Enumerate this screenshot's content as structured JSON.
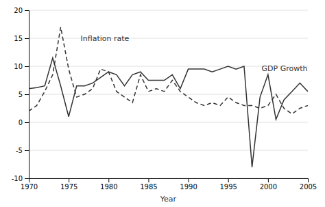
{
  "chart_data": {
    "type": "line",
    "x": [
      1970,
      1971,
      1972,
      1973,
      1974,
      1975,
      1976,
      1977,
      1978,
      1979,
      1980,
      1981,
      1982,
      1983,
      1984,
      1985,
      1986,
      1987,
      1988,
      1989,
      1990,
      1991,
      1992,
      1993,
      1994,
      1995,
      1996,
      1997,
      1998,
      1999,
      2000,
      2001,
      2002,
      2003,
      2004,
      2005
    ],
    "series": [
      {
        "values": [
          6.0,
          6.2,
          6.5,
          11.5,
          6.5,
          1.0,
          6.5,
          6.5,
          7.0,
          8.0,
          9.0,
          8.5,
          6.5,
          8.5,
          9.0,
          7.5,
          7.5,
          7.5,
          8.5,
          6.0,
          9.5,
          9.5,
          9.5,
          9.0,
          9.5,
          10.0,
          9.5,
          10.0,
          -8.0,
          4.5,
          8.5,
          0.5,
          4.0,
          5.5,
          7.0,
          5.5
        ],
        "line_style": "solid",
        "color": "#333333"
      },
      {
        "values": [
          2.0,
          3.0,
          5.5,
          8.5,
          17.0,
          9.5,
          4.5,
          5.0,
          6.0,
          9.5,
          9.0,
          5.5,
          4.5,
          3.5,
          8.5,
          5.5,
          6.0,
          5.5,
          7.5,
          5.5,
          4.5,
          3.5,
          3.0,
          3.5,
          3.0,
          4.5,
          3.5,
          3.0,
          3.0,
          2.5,
          3.0,
          5.0,
          2.5,
          1.5,
          2.5,
          3.0
        ],
        "line_style": "dashed",
        "color": "#333333"
      }
    ],
    "xlabel": "Year",
    "xlim": [
      1970,
      2005
    ],
    "ylim": [
      -10,
      20
    ],
    "xticks": [
      1970,
      1975,
      1980,
      1985,
      1990,
      1995,
      2000,
      2005
    ],
    "yticks": [
      -10,
      -5,
      0,
      5,
      10,
      15,
      20
    ],
    "grid": true,
    "annotations": [
      {
        "text": "Inflation rate",
        "x": 1976.5,
        "y": 14.5
      },
      {
        "text": "GDP Growth",
        "x": 1999.2,
        "y": 9.2
      }
    ]
  }
}
